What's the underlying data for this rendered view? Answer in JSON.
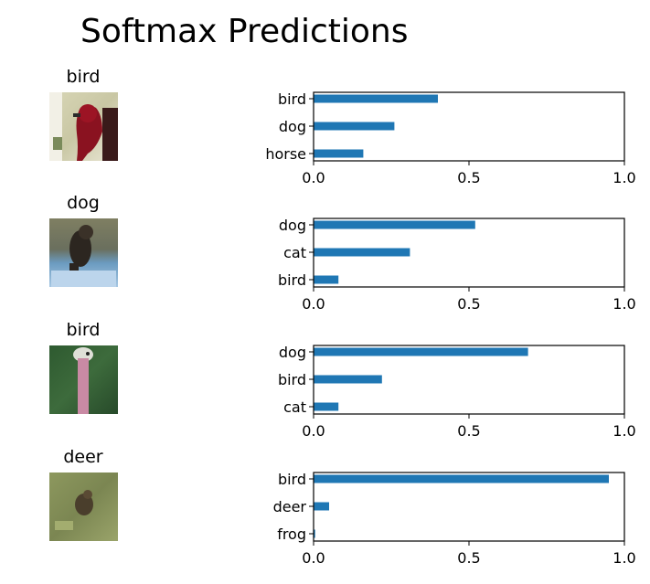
{
  "figure": {
    "title": "Softmax Predictions"
  },
  "chart_data": [
    {
      "type": "bar",
      "orientation": "horizontal",
      "image_label": "bird",
      "image_description": "red bird against light background",
      "categories": [
        "bird",
        "dog",
        "horse"
      ],
      "values": [
        0.4,
        0.26,
        0.16
      ],
      "xlim": [
        0,
        1
      ],
      "xticks": [
        "0.0",
        "0.5",
        "1.0"
      ],
      "bar_color": "#1f77b4",
      "grid": false
    },
    {
      "type": "bar",
      "orientation": "horizontal",
      "image_label": "dog",
      "image_description": "dark dog on blue blanket",
      "categories": [
        "dog",
        "cat",
        "bird"
      ],
      "values": [
        0.52,
        0.31,
        0.08
      ],
      "xlim": [
        0,
        1
      ],
      "xticks": [
        "0.0",
        "0.5",
        "1.0"
      ],
      "bar_color": "#1f77b4",
      "grid": false
    },
    {
      "type": "bar",
      "orientation": "horizontal",
      "image_label": "bird",
      "image_description": "ostrich head and neck on green background",
      "categories": [
        "dog",
        "bird",
        "cat"
      ],
      "values": [
        0.69,
        0.22,
        0.08
      ],
      "xlim": [
        0,
        1
      ],
      "xticks": [
        "0.0",
        "0.5",
        "1.0"
      ],
      "bar_color": "#1f77b4",
      "grid": false
    },
    {
      "type": "bar",
      "orientation": "horizontal",
      "image_label": "deer",
      "image_description": "small animal in grassy field",
      "categories": [
        "bird",
        "deer",
        "frog"
      ],
      "values": [
        0.95,
        0.05,
        0.005
      ],
      "xlim": [
        0,
        1
      ],
      "xticks": [
        "0.0",
        "0.5",
        "1.0"
      ],
      "bar_color": "#1f77b4",
      "grid": false
    }
  ]
}
